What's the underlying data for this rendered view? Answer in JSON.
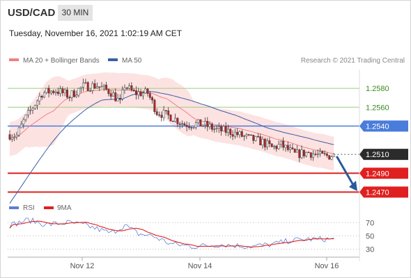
{
  "header": {
    "symbol": "USD/CAD",
    "timeframe": "30 MIN",
    "datetime": "Tuesday, November 16, 2021 1:02:19 AM CET"
  },
  "colors": {
    "bollinger": "#fcd6d6",
    "ma20": "#f08080",
    "ma50": "#3a5fa8",
    "support": "#e02020",
    "pivot": "#4a7cdb",
    "resistance": "#9acd80",
    "up_candle": "#ffffff",
    "down_candle": "#c22020",
    "rsi": "#5b7fd0",
    "rsi_ma": "#e02020",
    "arrow": "#285a9a"
  },
  "chart_data": [
    {
      "type": "line",
      "subtype": "candlestick",
      "legend": [
        "MA 20 + Bollinger Bands",
        "MA 50"
      ],
      "copyright": "Research © 2021 Trading Central",
      "x_ticks": [
        "Nov 12",
        "Nov 14",
        "Nov 16"
      ],
      "price_range": [
        1.246,
        1.26
      ],
      "levels": [
        {
          "value": 1.258,
          "label": "1.2580",
          "kind": "resistance"
        },
        {
          "value": 1.256,
          "label": "1.2560",
          "kind": "resistance"
        },
        {
          "value": 1.254,
          "label": "1.2540",
          "kind": "pivot"
        },
        {
          "value": 1.251,
          "label": "1.2510",
          "kind": "last"
        },
        {
          "value": 1.249,
          "label": "1.2490",
          "kind": "support"
        },
        {
          "value": 1.247,
          "label": "1.2470",
          "kind": "support"
        }
      ],
      "forecast_arrow": {
        "from": 1.2508,
        "to": 1.2474
      }
    },
    {
      "type": "line",
      "legend": [
        "RSI",
        "9MA"
      ],
      "y_ticks": [
        70,
        50,
        30
      ],
      "ylim": [
        20,
        85
      ]
    }
  ],
  "gen": {
    "n": 142,
    "seed": 7,
    "waypoints": [
      [
        0,
        1.2531
      ],
      [
        3,
        1.253
      ],
      [
        6,
        1.2545
      ],
      [
        10,
        1.256
      ],
      [
        14,
        1.2575
      ],
      [
        20,
        1.2578
      ],
      [
        26,
        1.2572
      ],
      [
        32,
        1.2582
      ],
      [
        38,
        1.2583
      ],
      [
        44,
        1.2576
      ],
      [
        48,
        1.2565
      ],
      [
        50,
        1.2583
      ],
      [
        54,
        1.2575
      ],
      [
        60,
        1.2575
      ],
      [
        64,
        1.2555
      ],
      [
        70,
        1.255
      ],
      [
        76,
        1.2542
      ],
      [
        84,
        1.2542
      ],
      [
        90,
        1.2536
      ],
      [
        96,
        1.2534
      ],
      [
        104,
        1.2527
      ],
      [
        110,
        1.2523
      ],
      [
        114,
        1.2517
      ],
      [
        118,
        1.252
      ],
      [
        124,
        1.251
      ],
      [
        130,
        1.2512
      ],
      [
        136,
        1.2508
      ],
      [
        141,
        1.2509
      ]
    ],
    "rsi_waypoints": [
      [
        0,
        66
      ],
      [
        8,
        74
      ],
      [
        16,
        67
      ],
      [
        26,
        70
      ],
      [
        34,
        65
      ],
      [
        44,
        54
      ],
      [
        50,
        66
      ],
      [
        56,
        53
      ],
      [
        62,
        50
      ],
      [
        70,
        38
      ],
      [
        80,
        34
      ],
      [
        92,
        37
      ],
      [
        104,
        34
      ],
      [
        114,
        37
      ],
      [
        122,
        43
      ],
      [
        130,
        45
      ],
      [
        141,
        45
      ]
    ]
  }
}
